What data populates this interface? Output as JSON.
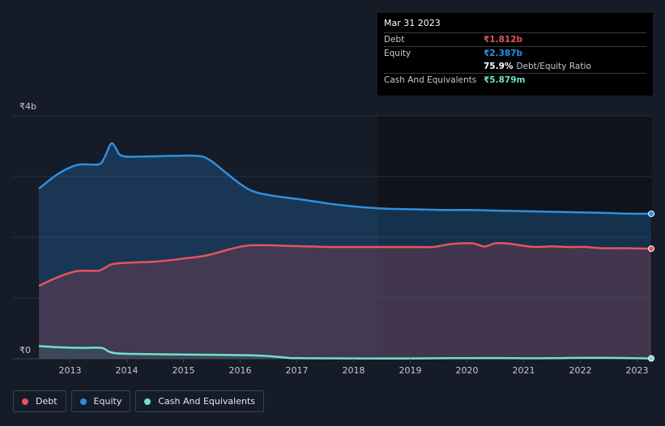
{
  "tooltip": {
    "date": "Mar 31 2023",
    "debt_label": "Debt",
    "debt_value": "₹1.812b",
    "equity_label": "Equity",
    "equity_value": "₹2.387b",
    "ratio_value": "75.9%",
    "ratio_label": "Debt/Equity Ratio",
    "cash_label": "Cash And Equivalents",
    "cash_value": "₹5.879m"
  },
  "legend": [
    {
      "label": "Debt",
      "color": "#e5545f"
    },
    {
      "label": "Equity",
      "color": "#2e8fe0"
    },
    {
      "label": "Cash And Equivalents",
      "color": "#6ee2cc"
    }
  ],
  "chart_data": {
    "type": "area",
    "title": "",
    "xlabel": "",
    "ylabel": "",
    "y_top_label": "₹4b",
    "y_bottom_label": "₹0",
    "ylim": [
      0,
      4.0
    ],
    "xlim": [
      2012.45,
      2023.25
    ],
    "x_ticks": [
      "2013",
      "2014",
      "2015",
      "2016",
      "2017",
      "2018",
      "2019",
      "2020",
      "2021",
      "2022",
      "2023"
    ],
    "x_tick_values": [
      2013,
      2014,
      2015,
      2016,
      2017,
      2018,
      2019,
      2020,
      2021,
      2022,
      2023
    ],
    "series": [
      {
        "name": "Equity",
        "color": "#2e8fe0",
        "points": [
          [
            2012.45,
            2.8
          ],
          [
            2012.75,
            3.02
          ],
          [
            2013.0,
            3.15
          ],
          [
            2013.2,
            3.2
          ],
          [
            2013.5,
            3.2
          ],
          [
            2013.6,
            3.3
          ],
          [
            2013.72,
            3.54
          ],
          [
            2013.8,
            3.48
          ],
          [
            2013.92,
            3.34
          ],
          [
            2014.3,
            3.33
          ],
          [
            2014.8,
            3.34
          ],
          [
            2015.25,
            3.34
          ],
          [
            2015.45,
            3.28
          ],
          [
            2015.7,
            3.1
          ],
          [
            2016.0,
            2.88
          ],
          [
            2016.25,
            2.75
          ],
          [
            2016.6,
            2.68
          ],
          [
            2017.1,
            2.62
          ],
          [
            2017.6,
            2.55
          ],
          [
            2018.1,
            2.5
          ],
          [
            2018.6,
            2.47
          ],
          [
            2019.1,
            2.46
          ],
          [
            2019.6,
            2.45
          ],
          [
            2020.0,
            2.45
          ],
          [
            2020.5,
            2.44
          ],
          [
            2021.0,
            2.43
          ],
          [
            2021.5,
            2.42
          ],
          [
            2022.0,
            2.41
          ],
          [
            2022.5,
            2.4
          ],
          [
            2022.8,
            2.39
          ],
          [
            2023.25,
            2.387
          ]
        ]
      },
      {
        "name": "Debt",
        "color": "#e5545f",
        "points": [
          [
            2012.45,
            1.2
          ],
          [
            2012.8,
            1.35
          ],
          [
            2013.1,
            1.44
          ],
          [
            2013.3,
            1.45
          ],
          [
            2013.5,
            1.45
          ],
          [
            2013.62,
            1.5
          ],
          [
            2013.75,
            1.56
          ],
          [
            2014.0,
            1.58
          ],
          [
            2014.5,
            1.6
          ],
          [
            2015.0,
            1.65
          ],
          [
            2015.4,
            1.7
          ],
          [
            2015.8,
            1.8
          ],
          [
            2016.1,
            1.86
          ],
          [
            2016.4,
            1.87
          ],
          [
            2016.8,
            1.86
          ],
          [
            2017.2,
            1.85
          ],
          [
            2017.6,
            1.84
          ],
          [
            2018.1,
            1.84
          ],
          [
            2018.6,
            1.84
          ],
          [
            2019.1,
            1.84
          ],
          [
            2019.4,
            1.84
          ],
          [
            2019.65,
            1.88
          ],
          [
            2019.85,
            1.9
          ],
          [
            2020.1,
            1.9
          ],
          [
            2020.25,
            1.86
          ],
          [
            2020.33,
            1.85
          ],
          [
            2020.5,
            1.9
          ],
          [
            2020.7,
            1.9
          ],
          [
            2021.0,
            1.86
          ],
          [
            2021.2,
            1.84
          ],
          [
            2021.5,
            1.85
          ],
          [
            2021.8,
            1.84
          ],
          [
            2022.1,
            1.84
          ],
          [
            2022.4,
            1.82
          ],
          [
            2022.8,
            1.82
          ],
          [
            2023.25,
            1.812
          ]
        ]
      },
      {
        "name": "Cash And Equivalents",
        "color": "#6ee2cc",
        "points": [
          [
            2012.45,
            0.21
          ],
          [
            2012.8,
            0.19
          ],
          [
            2013.2,
            0.18
          ],
          [
            2013.55,
            0.18
          ],
          [
            2013.68,
            0.12
          ],
          [
            2013.82,
            0.09
          ],
          [
            2014.1,
            0.08
          ],
          [
            2015.0,
            0.07
          ],
          [
            2016.0,
            0.06
          ],
          [
            2016.4,
            0.05
          ],
          [
            2016.8,
            0.02
          ],
          [
            2017.0,
            0.01
          ],
          [
            2018.0,
            0.006
          ],
          [
            2019.0,
            0.006
          ],
          [
            2019.7,
            0.01
          ],
          [
            2020.0,
            0.01
          ],
          [
            2020.5,
            0.012
          ],
          [
            2021.0,
            0.008
          ],
          [
            2021.5,
            0.01
          ],
          [
            2022.0,
            0.015
          ],
          [
            2022.5,
            0.015
          ],
          [
            2023.25,
            0.006
          ]
        ]
      }
    ]
  }
}
